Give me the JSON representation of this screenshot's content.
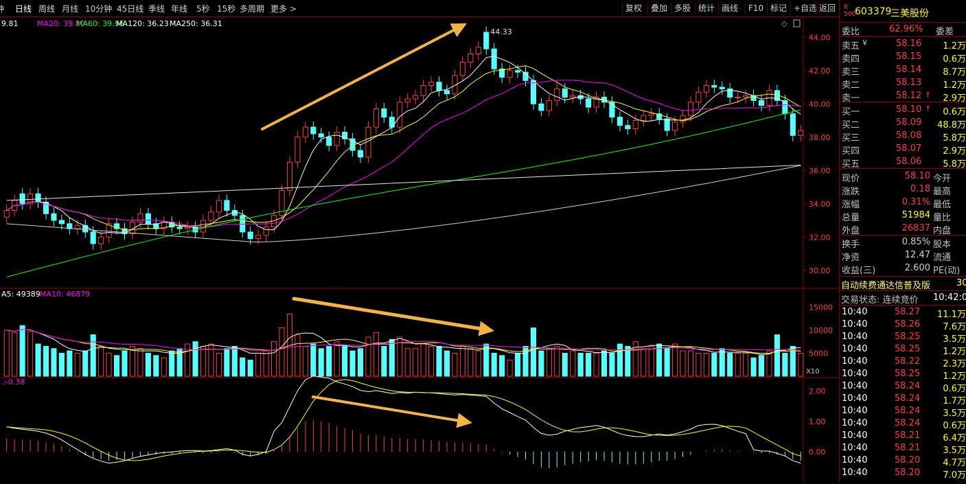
{
  "toolbar": {
    "periods": [
      "钟",
      "日线",
      "周线",
      "月线",
      "10分钟",
      "45日线",
      "季线",
      "年线",
      "5秒",
      "15秒",
      "多周期",
      "更多"
    ],
    "active_period": "日线",
    "buttons": [
      "复权",
      "叠加",
      "多股",
      "统计",
      "画线",
      "F10",
      "标记",
      "+自选",
      "返回"
    ]
  },
  "stock": {
    "badge_top": "R",
    "badge_bottom": "500",
    "code": "603379",
    "name": "三美股份"
  },
  "ma_legend": {
    "ma5": "9.81",
    "ma20": "MA20: 39.80",
    "ma60": "MA60: 39.96",
    "ma120": "MA120: 36.23",
    "ma250": "MA250: 36.31"
  },
  "vol_legend": {
    "ma5": "A5: 49389",
    "ma10": "MA10: 46879"
  },
  "macd_legend": {
    "value": "-0.38"
  },
  "price_axis": [
    "44.00",
    "42.00",
    "40.00",
    "38.00",
    "36.00",
    "34.00",
    "32.00",
    "30.00"
  ],
  "vol_axis": [
    "15000",
    "10000",
    "5000"
  ],
  "vol_unit": "X10",
  "macd_axis": [
    "2.00",
    "1.00",
    "0.00"
  ],
  "high_label": "44.33",
  "colors": {
    "up": "#ff3c3c",
    "down": "#54ffff",
    "ma5": "#ffffff",
    "ma10": "#ffff00",
    "ma20": "#ff00ff",
    "ma60": "#00ff00",
    "grid": "#8b0000",
    "arrow": "#f5b342"
  },
  "orderbook": {
    "weibi_label": "委比",
    "weibi_value": "62.96%",
    "weicha_label": "委差",
    "asks": [
      {
        "label": "卖五",
        "price": "58.16",
        "vol": "1.2万",
        "mark": "¥"
      },
      {
        "label": "卖四",
        "price": "58.15",
        "vol": "0.6万",
        "mark": ""
      },
      {
        "label": "卖三",
        "price": "58.14",
        "vol": "8.7万",
        "mark": ""
      },
      {
        "label": "卖二",
        "price": "58.13",
        "vol": "1.2万",
        "mark": ""
      },
      {
        "label": "卖一",
        "price": "58.12",
        "vol": "2.9万",
        "mark": "↑"
      }
    ],
    "bids": [
      {
        "label": "买一",
        "price": "58.10",
        "vol": "0.6万",
        "mark": "↑"
      },
      {
        "label": "买二",
        "price": "58.09",
        "vol": "48.8万",
        "mark": ""
      },
      {
        "label": "买三",
        "price": "58.08",
        "vol": "5.8万",
        "mark": ""
      },
      {
        "label": "买四",
        "price": "58.07",
        "vol": "2.9万",
        "mark": ""
      },
      {
        "label": "买五",
        "price": "58.06",
        "vol": "5.8万",
        "mark": ""
      }
    ]
  },
  "quote": [
    {
      "l1": "现价",
      "v1": "58.10",
      "l2": "今开"
    },
    {
      "l1": "涨跌",
      "v1": "0.18",
      "l2": "最高"
    },
    {
      "l1": "涨幅",
      "v1": "0.31%",
      "l2": "最低"
    },
    {
      "l1": "总量",
      "v1": "51984",
      "l2": "量比"
    },
    {
      "l1": "外盘",
      "v1": "26837",
      "l2": "内盘"
    }
  ],
  "fundamentals": [
    {
      "l1": "换手",
      "v1": "0.85%",
      "l2": "股本"
    },
    {
      "l1": "净资",
      "v1": "12.47",
      "l2": "流通"
    },
    {
      "l1": "收益(三)",
      "v1": "2.600",
      "l2": "PE(动)"
    }
  ],
  "promo": {
    "text": "自动续费通达信普及版",
    "num": "30"
  },
  "trade_status": {
    "label": "交易状态: 连续竞价",
    "time": "10:42:0"
  },
  "ticks": [
    {
      "time": "10:40",
      "price": "58.27",
      "vol": "11.1万"
    },
    {
      "time": "10:40",
      "price": "58.26",
      "vol": "7.6万"
    },
    {
      "time": "10:40",
      "price": "58.25",
      "vol": "3.5万"
    },
    {
      "time": "10:40",
      "price": "58.25",
      "vol": "1.2万"
    },
    {
      "time": "10:40",
      "price": "58.22",
      "vol": "2.3万"
    },
    {
      "time": "10:40",
      "price": "58.25",
      "vol": "1.2万"
    },
    {
      "time": "10:40",
      "price": "58.24",
      "vol": "0.6万"
    },
    {
      "time": "10:40",
      "price": "58.24",
      "vol": "1.7万"
    },
    {
      "time": "10:40",
      "price": "58.24",
      "vol": "3.5万"
    },
    {
      "time": "10:40",
      "price": "58.24",
      "vol": "0.6万"
    },
    {
      "time": "10:40",
      "price": "58.21",
      "vol": "6.4万"
    },
    {
      "time": "10:40",
      "price": "58.21",
      "vol": "3.5万"
    },
    {
      "time": "10:40",
      "price": "58.20",
      "vol": "4.7万"
    },
    {
      "time": "10:40",
      "price": "58.20",
      "vol": "7.0万"
    }
  ],
  "chart_data": {
    "type": "candlestick",
    "price_range": [
      29,
      45
    ],
    "closes": [
      33.6,
      34.2,
      34.0,
      34.6,
      34.1,
      33.4,
      33.0,
      32.8,
      32.5,
      32.7,
      32.3,
      31.6,
      32.0,
      32.8,
      32.5,
      32.2,
      32.9,
      33.4,
      32.8,
      32.5,
      32.9,
      32.6,
      32.5,
      32.6,
      32.3,
      33.0,
      33.5,
      34.2,
      33.6,
      33.3,
      32.3,
      31.9,
      32.1,
      32.6,
      33.3,
      34.8,
      36.5,
      38.0,
      38.6,
      38.2,
      38.0,
      37.5,
      38.3,
      37.9,
      37.2,
      36.8,
      38.6,
      39.7,
      39.2,
      38.6,
      40.1,
      40.3,
      40.5,
      41.1,
      41.3,
      40.8,
      40.6,
      41.7,
      42.5,
      43.0,
      43.4,
      43.3,
      42.1,
      41.6,
      42.0,
      41.9,
      41.4,
      40.0,
      39.6,
      40.2,
      40.9,
      40.4,
      40.5,
      40.3,
      39.8,
      40.4,
      40.1,
      39.2,
      38.7,
      38.5,
      39.0,
      39.3,
      39.4,
      39.1,
      38.4,
      38.9,
      39.3,
      40.1,
      40.7,
      41.1,
      41.0,
      40.9,
      40.4,
      40.4,
      40.5,
      40.2,
      39.9,
      40.8,
      40.2,
      39.4,
      38.1,
      38.4
    ],
    "opens": [
      33.2,
      33.6,
      34.6,
      34.0,
      34.6,
      34.1,
      33.4,
      33.0,
      32.8,
      32.5,
      32.7,
      32.3,
      31.6,
      32.0,
      32.8,
      32.5,
      32.2,
      32.9,
      33.4,
      32.8,
      32.5,
      32.9,
      32.6,
      32.5,
      32.6,
      32.3,
      33.0,
      33.5,
      34.2,
      33.6,
      33.3,
      32.3,
      31.9,
      32.1,
      32.6,
      33.3,
      34.8,
      36.5,
      38.0,
      38.6,
      38.2,
      38.0,
      37.5,
      38.3,
      37.9,
      37.2,
      36.8,
      38.6,
      39.7,
      39.2,
      38.6,
      40.1,
      40.3,
      40.5,
      41.1,
      41.3,
      40.8,
      40.6,
      41.7,
      42.5,
      43.0,
      44.3,
      43.3,
      42.1,
      41.6,
      42.0,
      41.9,
      41.4,
      40.0,
      39.6,
      40.2,
      40.9,
      40.4,
      40.5,
      40.3,
      39.8,
      40.4,
      40.1,
      39.2,
      38.7,
      38.5,
      39.0,
      39.3,
      39.4,
      39.1,
      38.4,
      38.9,
      39.3,
      40.1,
      40.7,
      41.1,
      41.0,
      40.9,
      40.4,
      40.4,
      40.5,
      40.2,
      39.9,
      40.8,
      40.2,
      39.4,
      38.1
    ],
    "volumes": [
      10000,
      9500,
      11000,
      9800,
      7000,
      6500,
      6000,
      5000,
      5500,
      5000,
      5500,
      9000,
      6500,
      5000,
      4500,
      5500,
      6500,
      6000,
      5000,
      4500,
      4000,
      5500,
      6000,
      7000,
      7500,
      6500,
      7000,
      5000,
      6000,
      6500,
      4000,
      3500,
      5000,
      5500,
      7500,
      10500,
      13500,
      9000,
      6500,
      7000,
      6000,
      6500,
      7500,
      6500,
      5500,
      6000,
      8500,
      9500,
      6500,
      8000,
      8500,
      6000,
      6000,
      7000,
      6500,
      6500,
      5500,
      5000,
      6500,
      6000,
      5500,
      7000,
      5000,
      4500,
      3500,
      5000,
      6500,
      10500,
      5500,
      6000,
      6500,
      5000,
      5500,
      5000,
      5000,
      5000,
      5500,
      5000,
      7000,
      6500,
      7500,
      6000,
      6500,
      7000,
      6000,
      7000,
      5500,
      5500,
      5000,
      5000,
      5000,
      6000,
      5000,
      5000,
      5000,
      4000,
      4500,
      5500,
      9000,
      5000,
      6500,
      5000
    ],
    "macd_hist": [
      0.45,
      0.42,
      0.4,
      0.38,
      0.36,
      0.32,
      0.26,
      0.18,
      0.08,
      -0.02,
      -0.12,
      -0.2,
      -0.26,
      -0.3,
      -0.28,
      -0.25,
      -0.2,
      -0.16,
      -0.13,
      -0.1,
      -0.08,
      -0.07,
      -0.05,
      -0.04,
      -0.04,
      -0.05,
      -0.04,
      -0.02,
      0.0,
      -0.03,
      -0.12,
      -0.15,
      -0.12,
      -0.06,
      0.05,
      0.2,
      0.5,
      0.8,
      1.0,
      1.05,
      1.0,
      0.95,
      0.85,
      0.78,
      0.7,
      0.6,
      0.55,
      0.55,
      0.5,
      0.45,
      0.45,
      0.42,
      0.42,
      0.4,
      0.38,
      0.35,
      0.32,
      0.3,
      0.3,
      0.28,
      0.26,
      0.24,
      0.1,
      -0.02,
      -0.1,
      -0.18,
      -0.25,
      -0.4,
      -0.52,
      -0.55,
      -0.52,
      -0.45,
      -0.4,
      -0.35,
      -0.32,
      -0.28,
      -0.3,
      -0.35,
      -0.4,
      -0.42,
      -0.42,
      -0.4,
      -0.35,
      -0.3,
      -0.3,
      -0.25,
      -0.18,
      -0.1,
      0.0,
      0.05,
      0.08,
      0.08,
      0.05,
      0.02,
      0.0,
      -0.02,
      -0.05,
      -0.05,
      -0.1,
      -0.15,
      -0.25,
      -0.3
    ],
    "macd_range": [
      -1.0,
      2.4
    ]
  }
}
